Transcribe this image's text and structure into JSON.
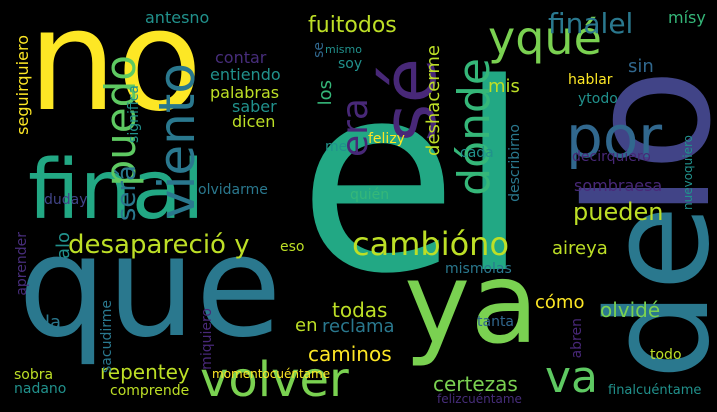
{
  "words": [
    {
      "text": "no",
      "color": "#fde725"
    },
    {
      "text": "el",
      "color": "#22a884"
    },
    {
      "text": "que",
      "color": "#2a788e"
    },
    {
      "text": "lo",
      "color": "#414487"
    },
    {
      "text": "de",
      "color": "#2a788e"
    },
    {
      "text": "ya",
      "color": "#7ad151"
    },
    {
      "text": "final",
      "color": "#22a884"
    },
    {
      "text": "sé",
      "color": "#482878"
    },
    {
      "text": "por",
      "color": "#31688e"
    },
    {
      "text": "volver",
      "color": "#7ad151"
    },
    {
      "text": "cambióno",
      "color": "#bddf26"
    },
    {
      "text": "viento",
      "color": "#2a788e"
    },
    {
      "text": "dónde",
      "color": "#35b779"
    },
    {
      "text": "yqué",
      "color": "#7ad151"
    },
    {
      "text": "va",
      "color": "#5ec962"
    },
    {
      "text": "puedo",
      "color": "#5ec962"
    },
    {
      "text": "era",
      "color": "#482878"
    },
    {
      "text": "finalel",
      "color": "#2a788e"
    },
    {
      "text": "desapareció y",
      "color": "#bddf26"
    },
    {
      "text": "pueden",
      "color": "#bddf26"
    },
    {
      "text": "será",
      "color": "#2a788e"
    },
    {
      "text": "fuitodos",
      "color": "#bddf26"
    },
    {
      "text": "caminos",
      "color": "#fde725"
    },
    {
      "text": "todas",
      "color": "#bddf26"
    },
    {
      "text": "olvidé",
      "color": "#7ad151"
    },
    {
      "text": "certezas",
      "color": "#7ad151"
    },
    {
      "text": "repentey",
      "color": "#bddf26"
    },
    {
      "text": "reclama",
      "color": "#2a788e"
    },
    {
      "text": "cómo",
      "color": "#fde725"
    },
    {
      "text": "aireya",
      "color": "#bddf26"
    },
    {
      "text": "sombraesa",
      "color": "#482878"
    },
    {
      "text": "deshacerme",
      "color": "#bddf26"
    },
    {
      "text": "los",
      "color": "#35b779"
    },
    {
      "text": "sin",
      "color": "#31688e"
    },
    {
      "text": "mis",
      "color": "#bddf26"
    },
    {
      "text": "en",
      "color": "#bddf26"
    },
    {
      "text": "la",
      "color": "#2a788e"
    },
    {
      "text": "alo",
      "color": "#21918c"
    },
    {
      "text": "seguirquiero",
      "color": "#fde725"
    },
    {
      "text": "mísy",
      "color": "#35b779"
    },
    {
      "text": "antesno",
      "color": "#21918c"
    },
    {
      "text": "contar",
      "color": "#472d7b"
    },
    {
      "text": "entiendo",
      "color": "#21918c"
    },
    {
      "text": "palabras",
      "color": "#bddf26"
    },
    {
      "text": "saber",
      "color": "#21918c"
    },
    {
      "text": "dicen",
      "color": "#bddf26"
    },
    {
      "text": "soy",
      "color": "#21918c"
    },
    {
      "text": "mismo",
      "color": "#21918c"
    },
    {
      "text": "se",
      "color": "#31688e"
    },
    {
      "text": "me",
      "color": "#21918c"
    },
    {
      "text": "felizy",
      "color": "#fde725"
    },
    {
      "text": "cada",
      "color": "#21918c"
    },
    {
      "text": "quién",
      "color": "#35b779"
    },
    {
      "text": "hablar",
      "color": "#fde725"
    },
    {
      "text": "ytodo",
      "color": "#21918c"
    },
    {
      "text": "decirquiero",
      "color": "#482878"
    },
    {
      "text": "nuevoquiero",
      "color": "#21918c"
    },
    {
      "text": "significa",
      "color": "#21918c"
    },
    {
      "text": "olvidarme",
      "color": "#2a788e"
    },
    {
      "text": "duday",
      "color": "#414487"
    },
    {
      "text": "aprender",
      "color": "#472d7b"
    },
    {
      "text": "eso",
      "color": "#bddf26"
    },
    {
      "text": "mismolas",
      "color": "#2a788e"
    },
    {
      "text": "describirno",
      "color": "#2a788e"
    },
    {
      "text": "sacudirme",
      "color": "#2a788e"
    },
    {
      "text": "miquiero",
      "color": "#482878"
    },
    {
      "text": "tanta",
      "color": "#31688e"
    },
    {
      "text": "abren",
      "color": "#482878"
    },
    {
      "text": "todo",
      "color": "#bddf26"
    },
    {
      "text": "sobra",
      "color": "#bddf26"
    },
    {
      "text": "nadano",
      "color": "#21918c"
    },
    {
      "text": "comprende",
      "color": "#bddf26"
    },
    {
      "text": "momentocuéntame",
      "color": "#fde725"
    },
    {
      "text": "felizcuéntame",
      "color": "#472d7b"
    },
    {
      "text": "finalcuéntame",
      "color": "#21918c"
    }
  ]
}
